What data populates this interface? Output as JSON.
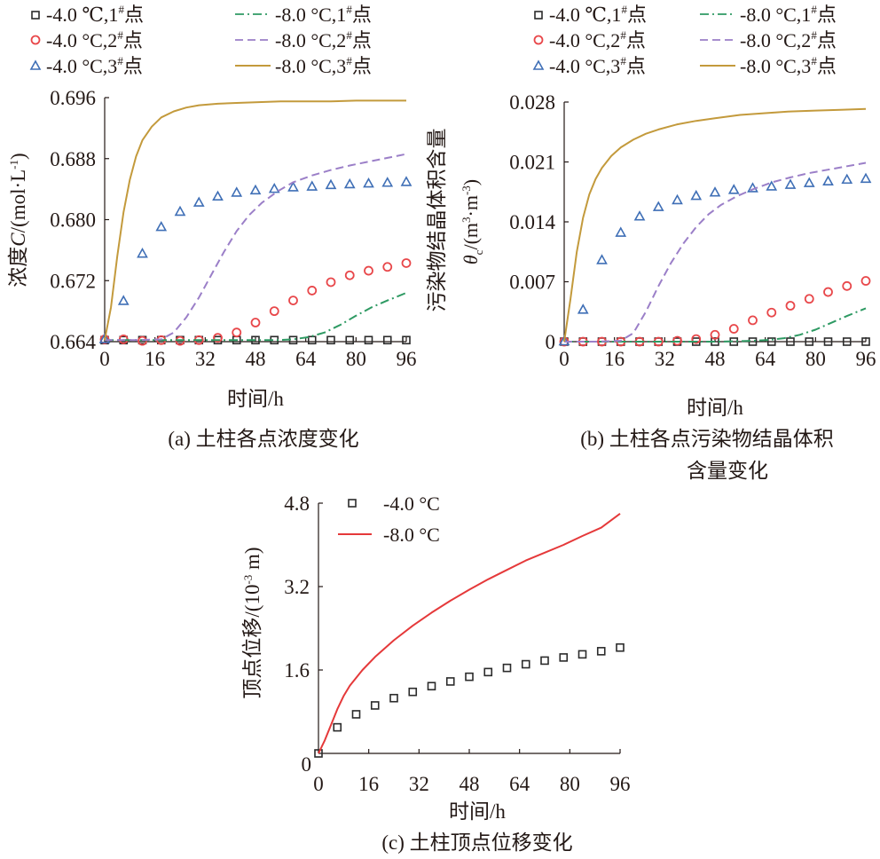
{
  "chart_data": [
    {
      "id": "a",
      "type": "line",
      "caption": "(a) 土柱各点浓度变化",
      "xlabel": "时间/h",
      "ylabel_prefix": "浓度",
      "ylabel_var": "C",
      "ylabel_unit": "/(mol·L",
      "ylabel_sup": "-1",
      "ylabel_close": ")",
      "xlim": [
        0,
        96
      ],
      "ylim": [
        0.664,
        0.696
      ],
      "xticks": [
        "0",
        "16",
        "32",
        "48",
        "64",
        "80",
        "96"
      ],
      "yticks": [
        "0.664",
        "0.672",
        "0.680",
        "0.688",
        "0.696"
      ],
      "legend": [
        {
          "label": "-4.0 ℃,1",
          "sup": "#",
          "tail": "点",
          "marker": "square",
          "color": "#2b2b2b"
        },
        {
          "label": "-4.0 °C,2",
          "sup": "#",
          "tail": "点",
          "marker": "circle",
          "color": "#e8474a"
        },
        {
          "label": "-4.0 °C,3",
          "sup": "#",
          "tail": "点",
          "marker": "triangle",
          "color": "#3f6fb6"
        },
        {
          "label": "-8.0 °C,1",
          "sup": "#",
          "tail": "点",
          "dash": "dashdot",
          "color": "#2e9a63"
        },
        {
          "label": "-8.0 °C,2",
          "sup": "#",
          "tail": "点",
          "dash": "dashed",
          "color": "#9b7fc8"
        },
        {
          "label": "-8.0 °C,3",
          "sup": "#",
          "tail": "点",
          "dash": "solid",
          "color": "#c39a3c"
        }
      ],
      "series": [
        {
          "name": "-4.0 ℃,1#点",
          "kind": "marker",
          "marker": "square",
          "color": "#2b2b2b",
          "x": [
            0,
            6,
            12,
            18,
            24,
            30,
            36,
            42,
            48,
            54,
            60,
            66,
            72,
            78,
            84,
            90,
            96
          ],
          "y": [
            0.6642,
            0.6642,
            0.6642,
            0.6642,
            0.6642,
            0.6642,
            0.6642,
            0.6642,
            0.6642,
            0.6642,
            0.6642,
            0.6642,
            0.6642,
            0.6642,
            0.6642,
            0.6642,
            0.6642
          ]
        },
        {
          "name": "-4.0 °C,2#点",
          "kind": "marker",
          "marker": "circle",
          "color": "#e8474a",
          "x": [
            0,
            6,
            12,
            18,
            24,
            30,
            36,
            42,
            48,
            54,
            60,
            66,
            72,
            78,
            84,
            90,
            96
          ],
          "y": [
            0.6643,
            0.6643,
            0.6641,
            0.6642,
            0.6641,
            0.6642,
            0.6645,
            0.6652,
            0.6665,
            0.668,
            0.6694,
            0.6707,
            0.6718,
            0.6727,
            0.6733,
            0.6738,
            0.6743
          ]
        },
        {
          "name": "-4.0 °C,3#点",
          "kind": "marker",
          "marker": "triangle",
          "color": "#3f6fb6",
          "x": [
            0,
            6,
            12,
            18,
            24,
            30,
            36,
            42,
            48,
            54,
            60,
            66,
            72,
            78,
            84,
            90,
            96
          ],
          "y": [
            0.6643,
            0.6693,
            0.6755,
            0.679,
            0.681,
            0.6822,
            0.683,
            0.6835,
            0.6838,
            0.684,
            0.6842,
            0.6843,
            0.6845,
            0.6846,
            0.6847,
            0.6848,
            0.6849
          ]
        },
        {
          "name": "-8.0 °C,1#点",
          "kind": "line",
          "dash": "dashdot",
          "color": "#2e9a63",
          "x": [
            0,
            10,
            20,
            30,
            40,
            50,
            55,
            60,
            65,
            70,
            75,
            80,
            85,
            90,
            96
          ],
          "y": [
            0.6642,
            0.6642,
            0.6642,
            0.6642,
            0.6642,
            0.6642,
            0.6642,
            0.6643,
            0.6646,
            0.6652,
            0.6662,
            0.6674,
            0.6685,
            0.6694,
            0.6704
          ]
        },
        {
          "name": "-8.0 °C,2#点",
          "kind": "line",
          "dash": "dashed",
          "color": "#9b7fc8",
          "x": [
            0,
            10,
            18,
            22,
            26,
            30,
            34,
            38,
            42,
            46,
            50,
            55,
            60,
            66,
            72,
            78,
            84,
            90,
            96
          ],
          "y": [
            0.6642,
            0.6642,
            0.6643,
            0.6652,
            0.6672,
            0.6698,
            0.6728,
            0.6758,
            0.6785,
            0.6806,
            0.6822,
            0.6837,
            0.6849,
            0.6858,
            0.6865,
            0.6871,
            0.6876,
            0.6881,
            0.6886
          ]
        },
        {
          "name": "-8.0 °C,3#点",
          "kind": "line",
          "dash": "solid",
          "color": "#c39a3c",
          "x": [
            0,
            2,
            4,
            6,
            8,
            10,
            12,
            15,
            18,
            22,
            26,
            30,
            36,
            42,
            48,
            56,
            64,
            72,
            80,
            88,
            96
          ],
          "y": [
            0.6642,
            0.6685,
            0.6752,
            0.681,
            0.6852,
            0.6883,
            0.6904,
            0.6922,
            0.6934,
            0.6942,
            0.6947,
            0.695,
            0.6952,
            0.6953,
            0.6954,
            0.6955,
            0.6955,
            0.6955,
            0.6956,
            0.6956,
            0.6956
          ]
        }
      ]
    },
    {
      "id": "b",
      "type": "line",
      "caption_line1": "(b) 土柱各点污染物结晶体积",
      "caption_line2": "含量变化",
      "xlabel": "时间/h",
      "ylabel_line1": "污染物结晶体积含量",
      "ylabel_var": "θ",
      "ylabel_sub": "c",
      "ylabel_unit": "/(m",
      "ylabel_sup1": "3",
      "ylabel_mid": "·m",
      "ylabel_sup2": "-3",
      "ylabel_close": ")",
      "xlim": [
        0,
        96
      ],
      "ylim": [
        0,
        0.028
      ],
      "xticks": [
        "0",
        "16",
        "32",
        "48",
        "64",
        "80",
        "96"
      ],
      "yticks": [
        "0",
        "0.007",
        "0.014",
        "0.021",
        "0.028"
      ],
      "legend": [
        {
          "label": "-4.0 ℃,1",
          "sup": "#",
          "tail": "点",
          "marker": "square",
          "color": "#2b2b2b"
        },
        {
          "label": "-4.0 °C,2",
          "sup": "#",
          "tail": "点",
          "marker": "circle",
          "color": "#e8474a"
        },
        {
          "label": "-4.0 °C,3",
          "sup": "#",
          "tail": "点",
          "marker": "triangle",
          "color": "#3f6fb6"
        },
        {
          "label": "-8.0 °C,1",
          "sup": "#",
          "tail": "点",
          "dash": "dashdot",
          "color": "#2e9a63"
        },
        {
          "label": "-8.0 °C,2",
          "sup": "#",
          "tail": "点",
          "dash": "dashed",
          "color": "#9b7fc8"
        },
        {
          "label": "-8.0 °C,3",
          "sup": "#",
          "tail": "点",
          "dash": "solid",
          "color": "#c39a3c"
        }
      ],
      "series": [
        {
          "name": "-4.0 ℃,1#点",
          "kind": "marker",
          "marker": "square",
          "color": "#2b2b2b",
          "x": [
            0,
            6,
            12,
            18,
            24,
            30,
            36,
            42,
            48,
            54,
            60,
            66,
            72,
            78,
            84,
            90,
            96
          ],
          "y": [
            0,
            0,
            0,
            0,
            0,
            0,
            0,
            0,
            0,
            0,
            0,
            0,
            0,
            0,
            0,
            0,
            0
          ]
        },
        {
          "name": "-4.0 °C,2#点",
          "kind": "marker",
          "marker": "circle",
          "color": "#e8474a",
          "x": [
            0,
            6,
            12,
            18,
            24,
            30,
            36,
            42,
            48,
            54,
            60,
            66,
            72,
            78,
            84,
            90,
            96
          ],
          "y": [
            0,
            0,
            0,
            0,
            0,
            0,
            0.0001,
            0.0003,
            0.0008,
            0.0015,
            0.0025,
            0.0034,
            0.0042,
            0.005,
            0.0058,
            0.0065,
            0.0071
          ]
        },
        {
          "name": "-4.0 °C,3#点",
          "kind": "marker",
          "marker": "triangle",
          "color": "#3f6fb6",
          "x": [
            0,
            6,
            12,
            18,
            24,
            30,
            36,
            42,
            48,
            54,
            60,
            66,
            72,
            78,
            84,
            90,
            96
          ],
          "y": [
            0,
            0.0037,
            0.0095,
            0.0127,
            0.0146,
            0.0157,
            0.0165,
            0.017,
            0.0174,
            0.0177,
            0.0179,
            0.0181,
            0.0183,
            0.0185,
            0.0187,
            0.0189,
            0.019
          ]
        },
        {
          "name": "-8.0 °C,1#点",
          "kind": "line",
          "dash": "dashdot",
          "color": "#2e9a63",
          "x": [
            0,
            10,
            20,
            30,
            40,
            50,
            60,
            65,
            70,
            75,
            80,
            85,
            90,
            96
          ],
          "y": [
            0,
            0,
            0,
            0,
            0,
            0,
            0.0001,
            0.0002,
            0.0004,
            0.0008,
            0.0014,
            0.0022,
            0.003,
            0.0039
          ]
        },
        {
          "name": "-8.0 °C,2#点",
          "kind": "line",
          "dash": "dashed",
          "color": "#9b7fc8",
          "x": [
            0,
            10,
            18,
            22,
            26,
            30,
            34,
            38,
            42,
            46,
            50,
            55,
            60,
            66,
            72,
            78,
            84,
            90,
            96
          ],
          "y": [
            0,
            0,
            0.0001,
            0.001,
            0.0035,
            0.0065,
            0.0092,
            0.0115,
            0.0134,
            0.0149,
            0.016,
            0.017,
            0.0178,
            0.0186,
            0.0192,
            0.0197,
            0.0201,
            0.0205,
            0.0209
          ]
        },
        {
          "name": "-8.0 °C,3#点",
          "kind": "line",
          "dash": "solid",
          "color": "#c39a3c",
          "x": [
            0,
            2,
            4,
            6,
            8,
            10,
            12,
            15,
            18,
            22,
            26,
            30,
            36,
            42,
            48,
            56,
            64,
            72,
            80,
            88,
            96
          ],
          "y": [
            0,
            0.005,
            0.0105,
            0.0145,
            0.0172,
            0.019,
            0.0203,
            0.0217,
            0.0227,
            0.0236,
            0.0243,
            0.0248,
            0.0254,
            0.0258,
            0.0261,
            0.0265,
            0.0267,
            0.0269,
            0.027,
            0.0271,
            0.0272
          ]
        }
      ]
    },
    {
      "id": "c",
      "type": "line",
      "caption": "(c) 土柱顶点位移变化",
      "xlabel": "时间/h",
      "ylabel": "顶点位移/(10",
      "ylabel_sup": "-3",
      "ylabel_tail": " m)",
      "xlim": [
        0,
        96
      ],
      "ylim": [
        0,
        4.8
      ],
      "xticks": [
        "0",
        "16",
        "32",
        "48",
        "64",
        "80",
        "96"
      ],
      "yticks": [
        "1.6",
        "3.2",
        "4.8"
      ],
      "legend": [
        {
          "label": "-4.0 °C",
          "marker": "square",
          "color": "#2b2b2b"
        },
        {
          "label": "-8.0 °C",
          "dash": "solid",
          "color": "#e5393a"
        }
      ],
      "series": [
        {
          "name": "-4.0 °C",
          "kind": "marker",
          "marker": "square",
          "color": "#2b2b2b",
          "x": [
            0,
            6,
            12,
            18,
            24,
            30,
            36,
            42,
            48,
            54,
            60,
            66,
            72,
            78,
            84,
            90,
            96
          ],
          "y": [
            0,
            0.5,
            0.75,
            0.92,
            1.06,
            1.18,
            1.29,
            1.38,
            1.47,
            1.56,
            1.64,
            1.71,
            1.78,
            1.84,
            1.9,
            1.96,
            2.03
          ]
        },
        {
          "name": "-8.0 °C",
          "kind": "line",
          "dash": "solid",
          "color": "#e5393a",
          "x": [
            0,
            2,
            4,
            6,
            8,
            10,
            14,
            18,
            24,
            30,
            36,
            42,
            48,
            54,
            60,
            66,
            72,
            78,
            84,
            90,
            96
          ],
          "y": [
            0,
            0.25,
            0.55,
            0.85,
            1.1,
            1.3,
            1.6,
            1.85,
            2.17,
            2.45,
            2.7,
            2.93,
            3.14,
            3.34,
            3.52,
            3.7,
            3.85,
            4.0,
            4.17,
            4.33,
            4.6
          ]
        }
      ]
    }
  ]
}
